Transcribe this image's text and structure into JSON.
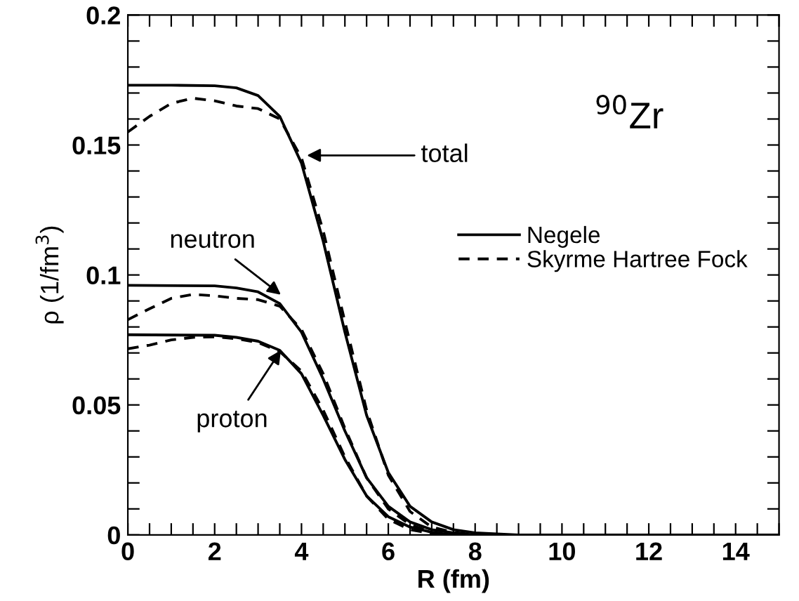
{
  "chart_data": {
    "type": "line",
    "xlabel": "R (fm)",
    "ylabel": "ρ (1/fm$^{3}$)",
    "xlim": [
      0,
      15
    ],
    "ylim": [
      0,
      0.2
    ],
    "xticks": [
      0,
      {
        "value": 0.5,
        "label": null
      },
      {
        "value": 1,
        "label": null
      },
      {
        "value": 1.5,
        "label": null
      },
      2,
      {
        "value": 2.5,
        "label": null
      },
      {
        "value": 3,
        "label": null
      },
      {
        "value": 3.5,
        "label": null
      },
      4,
      {
        "value": 4.5,
        "label": null
      },
      {
        "value": 5,
        "label": null
      },
      {
        "value": 5.5,
        "label": null
      },
      6,
      {
        "value": 6.5,
        "label": null
      },
      {
        "value": 7,
        "label": null
      },
      {
        "value": 7.5,
        "label": null
      },
      8,
      {
        "value": 8.5,
        "label": null
      },
      {
        "value": 9,
        "label": null
      },
      {
        "value": 9.5,
        "label": null
      },
      10,
      {
        "value": 10.5,
        "label": null
      },
      {
        "value": 11,
        "label": null
      },
      {
        "value": 11.5,
        "label": null
      },
      12,
      {
        "value": 12.5,
        "label": null
      },
      {
        "value": 13,
        "label": null
      },
      {
        "value": 13.5,
        "label": null
      },
      14,
      {
        "value": 14.5,
        "label": null
      },
      {
        "value": 15,
        "label": null
      }
    ],
    "yticks": [
      0,
      {
        "value": 0.01,
        "label": null
      },
      {
        "value": 0.02,
        "label": null
      },
      {
        "value": 0.03,
        "label": null
      },
      {
        "value": 0.04,
        "label": null
      },
      0.05,
      {
        "value": 0.06,
        "label": null
      },
      {
        "value": 0.07,
        "label": null
      },
      {
        "value": 0.08,
        "label": null
      },
      {
        "value": 0.09,
        "label": null
      },
      0.1,
      {
        "value": 0.11,
        "label": null
      },
      {
        "value": 0.12,
        "label": null
      },
      {
        "value": 0.13,
        "label": null
      },
      {
        "value": 0.14,
        "label": null
      },
      0.15,
      {
        "value": 0.16,
        "label": null
      },
      {
        "value": 0.17,
        "label": null
      },
      {
        "value": 0.18,
        "label": null
      },
      {
        "value": 0.19,
        "label": null
      },
      0.2
    ],
    "grid": false,
    "legend": "right",
    "marker": "none",
    "series": [
      {
        "name": "Negele",
        "color": "#000000",
        "line_style": "solid",
        "x": [
          0,
          1,
          2,
          2.5,
          3,
          3.5,
          4,
          4.5,
          5,
          5.5,
          6,
          6.5,
          7,
          7.5,
          8,
          9,
          15
        ],
        "values": [
          0.173,
          0.173,
          0.1728,
          0.172,
          0.169,
          0.161,
          0.143,
          0.113,
          0.078,
          0.046,
          0.024,
          0.011,
          0.005,
          0.002,
          0.0008,
          0,
          0
        ]
      },
      {
        "name": "Skyrme Hartree Fock",
        "color": "#000000",
        "line_style": "dashed",
        "x": [
          0,
          0.5,
          1,
          1.5,
          2,
          2.5,
          3,
          3.5,
          4,
          4.5,
          5,
          5.5,
          6,
          6.5,
          7,
          7.5,
          8,
          15
        ],
        "values": [
          0.155,
          0.161,
          0.166,
          0.168,
          0.167,
          0.165,
          0.164,
          0.16,
          0.145,
          0.117,
          0.082,
          0.048,
          0.023,
          0.009,
          0.003,
          0.001,
          0,
          0
        ]
      },
      {
        "color": "#000000",
        "line_style": "solid",
        "x": [
          0,
          2,
          2.5,
          3,
          3.5,
          4,
          4.5,
          5,
          5.5,
          6,
          6.5,
          7,
          7.5,
          8,
          15
        ],
        "values": [
          0.096,
          0.0958,
          0.095,
          0.0935,
          0.089,
          0.078,
          0.06,
          0.04,
          0.022,
          0.011,
          0.005,
          0.002,
          0.0008,
          0,
          0
        ]
      },
      {
        "color": "#000000",
        "line_style": "dashed",
        "x": [
          0,
          0.5,
          1,
          1.5,
          2,
          2.5,
          3,
          3.5,
          4,
          4.5,
          5,
          5.5,
          6,
          6.5,
          7,
          7.5,
          15
        ],
        "values": [
          0.0828,
          0.087,
          0.091,
          0.0925,
          0.092,
          0.091,
          0.0905,
          0.088,
          0.079,
          0.062,
          0.041,
          0.022,
          0.01,
          0.004,
          0.001,
          0,
          0
        ]
      },
      {
        "color": "#000000",
        "line_style": "solid",
        "x": [
          0,
          2,
          2.5,
          3,
          3.5,
          4,
          4.5,
          5,
          5.5,
          6,
          6.5,
          7,
          7.5,
          15
        ],
        "values": [
          0.077,
          0.0768,
          0.076,
          0.0745,
          0.071,
          0.062,
          0.046,
          0.029,
          0.015,
          0.007,
          0.003,
          0.001,
          0,
          0
        ]
      },
      {
        "color": "#000000",
        "line_style": "dashed",
        "x": [
          0,
          0.5,
          1,
          1.5,
          2,
          2.5,
          3,
          3.5,
          4,
          4.5,
          5,
          5.5,
          6,
          6.5,
          7,
          7.5,
          15
        ],
        "values": [
          0.0716,
          0.073,
          0.075,
          0.076,
          0.0762,
          0.0755,
          0.074,
          0.0705,
          0.063,
          0.048,
          0.03,
          0.015,
          0.006,
          0.002,
          0.0005,
          0,
          0
        ]
      }
    ],
    "annotations": [
      "total",
      "neutron",
      "proton",
      "$^{90}$Zr"
    ]
  }
}
